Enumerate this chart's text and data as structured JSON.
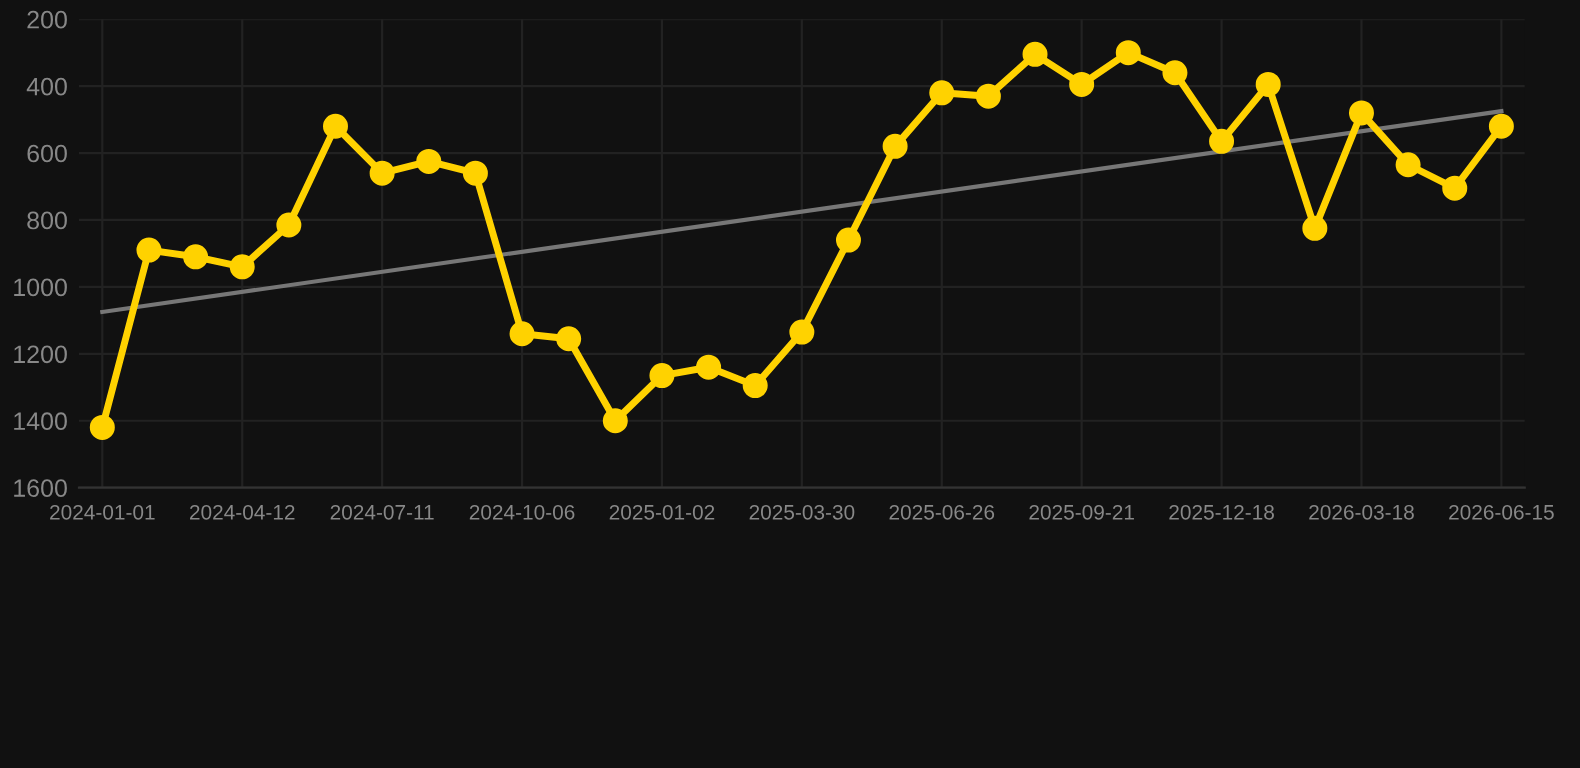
{
  "chart_data": {
    "type": "line",
    "categories": [
      "2024-01-01",
      null,
      null,
      "2024-04-12",
      null,
      null,
      "2024-07-11",
      null,
      null,
      "2024-10-06",
      null,
      null,
      "2025-01-02",
      null,
      null,
      "2025-03-30",
      null,
      null,
      "2025-06-26",
      null,
      null,
      "2025-09-21",
      null,
      null,
      "2025-12-18",
      null,
      null,
      "2026-03-18",
      null,
      null,
      "2026-06-15"
    ],
    "series": [
      {
        "color": "#ffd200",
        "marker": "circle",
        "values": [
          1420,
          890,
          910,
          940,
          815,
          520,
          660,
          625,
          660,
          1140,
          1155,
          1400,
          1265,
          1240,
          1295,
          1135,
          860,
          580,
          420,
          430,
          305,
          395,
          300,
          360,
          565,
          395,
          825,
          480,
          635,
          705,
          520
        ]
      },
      {
        "color": "#777777",
        "marker": "none",
        "values": [
          1075,
          null,
          null,
          null,
          null,
          null,
          null,
          null,
          null,
          null,
          null,
          null,
          null,
          null,
          null,
          null,
          null,
          null,
          null,
          null,
          null,
          null,
          null,
          null,
          null,
          null,
          null,
          null,
          null,
          null,
          475
        ]
      }
    ],
    "ylim": [
      1600,
      200
    ],
    "yticks": [
      200,
      400,
      600,
      800,
      1000,
      1200,
      1400,
      1600
    ],
    "grid": true
  }
}
